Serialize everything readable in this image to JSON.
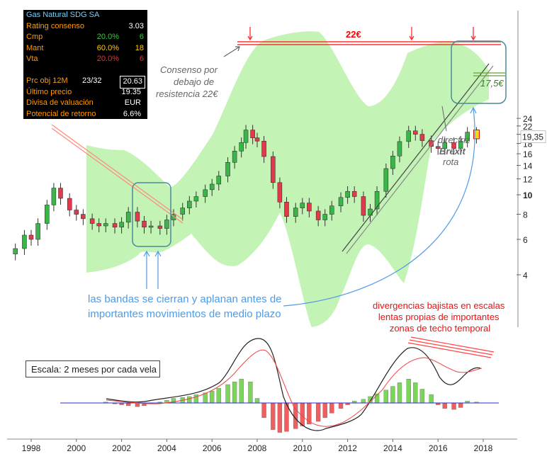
{
  "infobox": {
    "title": "Gas Natural SDG SA",
    "rows": [
      {
        "label": "Rating consenso",
        "v2": "",
        "v3": "3.03"
      },
      {
        "label": "Cmp",
        "v2": "20.0%",
        "v3": "6"
      },
      {
        "label": "Mant",
        "v2": "60.0%",
        "v3": "18"
      },
      {
        "label": "Vta",
        "v2": "20.0%",
        "v3": "6"
      }
    ],
    "prc_obj_label": "Prc obj 12M",
    "prc_obj_count": "23/32",
    "prc_obj_value": "20.63",
    "ultimo_label": "Último precio",
    "ultimo_value": "19.35",
    "divisa_label": "Divisa de valuación",
    "divisa_value": "EUR",
    "potencial_label": "Potencial de retorno",
    "potencial_value": "6.6%"
  },
  "annotations": {
    "resistance": "22€",
    "consenso": [
      "Consenso por",
      "debajo de",
      "resistencia 22€"
    ],
    "support": "17,5€",
    "directriz": [
      "directriz",
      "Brexit",
      "rota"
    ],
    "bands": [
      "las bandas se cierran y aplanan antes de",
      "importantes movimientos de medio plazo"
    ],
    "divergence": [
      "divergencias bajistas en escalas",
      "lentas propias de importantes",
      "zonas de techo temporal"
    ],
    "scale": "Escala: 2 meses por cada vela"
  },
  "chart_data": [
    {
      "type": "candlestick",
      "title": "Gas Natural SDG SA",
      "y_scale": "log",
      "y_ticks": [
        4,
        6,
        8,
        10,
        12,
        14,
        16,
        18,
        20,
        22,
        24
      ],
      "last_price_label": "19,35",
      "x_ticks": [
        "1998",
        "2000",
        "2002",
        "2004",
        "2006",
        "2008",
        "2010",
        "2012",
        "2014",
        "2016",
        "2018"
      ],
      "resistance_level": 22,
      "support_level": 17.5,
      "close_points": [
        {
          "x": 1997.3,
          "close": 5.4
        },
        {
          "x": 1997.7,
          "close": 6.3
        },
        {
          "x": 1998.0,
          "close": 6.0
        },
        {
          "x": 1998.3,
          "close": 7.2
        },
        {
          "x": 1998.7,
          "close": 8.9
        },
        {
          "x": 1999.0,
          "close": 10.8
        },
        {
          "x": 1999.3,
          "close": 9.6
        },
        {
          "x": 1999.7,
          "close": 8.4
        },
        {
          "x": 2000.0,
          "close": 8.0
        },
        {
          "x": 2000.3,
          "close": 7.6
        },
        {
          "x": 2000.7,
          "close": 7.2
        },
        {
          "x": 2001.0,
          "close": 7.0
        },
        {
          "x": 2001.3,
          "close": 7.2
        },
        {
          "x": 2001.7,
          "close": 6.9
        },
        {
          "x": 2002.0,
          "close": 7.3
        },
        {
          "x": 2002.3,
          "close": 8.2
        },
        {
          "x": 2002.7,
          "close": 7.4
        },
        {
          "x": 2003.0,
          "close": 6.9
        },
        {
          "x": 2003.3,
          "close": 7.0
        },
        {
          "x": 2003.7,
          "close": 6.8
        },
        {
          "x": 2004.0,
          "close": 7.5
        },
        {
          "x": 2004.3,
          "close": 8.0
        },
        {
          "x": 2004.7,
          "close": 8.6
        },
        {
          "x": 2005.0,
          "close": 9.3
        },
        {
          "x": 2005.3,
          "close": 9.8
        },
        {
          "x": 2005.7,
          "close": 10.6
        },
        {
          "x": 2006.0,
          "close": 11.3
        },
        {
          "x": 2006.3,
          "close": 12.4
        },
        {
          "x": 2006.7,
          "close": 14.5
        },
        {
          "x": 2007.0,
          "close": 16.5
        },
        {
          "x": 2007.3,
          "close": 18.2
        },
        {
          "x": 2007.5,
          "close": 21.0
        },
        {
          "x": 2007.8,
          "close": 19.2
        },
        {
          "x": 2008.0,
          "close": 18.5
        },
        {
          "x": 2008.3,
          "close": 15.5
        },
        {
          "x": 2008.7,
          "close": 11.5
        },
        {
          "x": 2009.0,
          "close": 9.2
        },
        {
          "x": 2009.3,
          "close": 7.8
        },
        {
          "x": 2009.7,
          "close": 8.6
        },
        {
          "x": 2010.0,
          "close": 9.1
        },
        {
          "x": 2010.3,
          "close": 8.3
        },
        {
          "x": 2010.7,
          "close": 7.5
        },
        {
          "x": 2011.0,
          "close": 8.0
        },
        {
          "x": 2011.3,
          "close": 8.8
        },
        {
          "x": 2011.7,
          "close": 9.7
        },
        {
          "x": 2012.0,
          "close": 10.4
        },
        {
          "x": 2012.3,
          "close": 9.8
        },
        {
          "x": 2012.7,
          "close": 7.9
        },
        {
          "x": 2013.0,
          "close": 8.5
        },
        {
          "x": 2013.3,
          "close": 10.4
        },
        {
          "x": 2013.7,
          "close": 13.5
        },
        {
          "x": 2014.0,
          "close": 15.6
        },
        {
          "x": 2014.3,
          "close": 18.4
        },
        {
          "x": 2014.7,
          "close": 20.8
        },
        {
          "x": 2015.0,
          "close": 20.0
        },
        {
          "x": 2015.3,
          "close": 18.6
        },
        {
          "x": 2015.7,
          "close": 17.4
        },
        {
          "x": 2016.0,
          "close": 17.0
        },
        {
          "x": 2016.3,
          "close": 18.2
        },
        {
          "x": 2016.7,
          "close": 17.0
        },
        {
          "x": 2017.0,
          "close": 18.5
        },
        {
          "x": 2017.3,
          "close": 20.5
        },
        {
          "x": 2017.7,
          "close": 19.35
        }
      ]
    },
    {
      "type": "histogram",
      "title": "MACD",
      "series": [
        {
          "name": "",
          "values": [
            {
              "x": 2001.3,
              "y": 0.1
            },
            {
              "x": 2001.7,
              "y": -0.1
            },
            {
              "x": 2002.0,
              "y": -0.2
            },
            {
              "x": 2002.3,
              "y": -0.3
            },
            {
              "x": 2002.7,
              "y": -0.4
            },
            {
              "x": 2003.0,
              "y": -0.3
            },
            {
              "x": 2003.3,
              "y": -0.1
            },
            {
              "x": 2003.7,
              "y": 0.1
            },
            {
              "x": 2004.0,
              "y": 0.3
            },
            {
              "x": 2004.3,
              "y": 0.5
            },
            {
              "x": 2004.7,
              "y": 0.6
            },
            {
              "x": 2005.0,
              "y": 0.7
            },
            {
              "x": 2005.3,
              "y": 0.9
            },
            {
              "x": 2005.7,
              "y": 1.1
            },
            {
              "x": 2006.0,
              "y": 1.3
            },
            {
              "x": 2006.3,
              "y": 1.6
            },
            {
              "x": 2006.7,
              "y": 2.0
            },
            {
              "x": 2007.0,
              "y": 2.3
            },
            {
              "x": 2007.3,
              "y": 2.6
            },
            {
              "x": 2007.7,
              "y": 2.3
            },
            {
              "x": 2008.0,
              "y": 0.5
            },
            {
              "x": 2008.3,
              "y": -1.6
            },
            {
              "x": 2008.7,
              "y": -2.9
            },
            {
              "x": 2009.0,
              "y": -3.2
            },
            {
              "x": 2009.3,
              "y": -3.1
            },
            {
              "x": 2009.7,
              "y": -2.8
            },
            {
              "x": 2010.0,
              "y": -2.5
            },
            {
              "x": 2010.3,
              "y": -2.3
            },
            {
              "x": 2010.7,
              "y": -2.0
            },
            {
              "x": 2011.0,
              "y": -1.6
            },
            {
              "x": 2011.3,
              "y": -1.1
            },
            {
              "x": 2011.7,
              "y": -0.6
            },
            {
              "x": 2012.0,
              "y": -0.2
            },
            {
              "x": 2012.3,
              "y": 0.2
            },
            {
              "x": 2012.7,
              "y": 0.4
            },
            {
              "x": 2013.0,
              "y": 0.7
            },
            {
              "x": 2013.3,
              "y": 1.0
            },
            {
              "x": 2013.7,
              "y": 1.4
            },
            {
              "x": 2014.0,
              "y": 1.8
            },
            {
              "x": 2014.3,
              "y": 2.2
            },
            {
              "x": 2014.7,
              "y": 2.6
            },
            {
              "x": 2015.0,
              "y": 2.2
            },
            {
              "x": 2015.3,
              "y": 1.5
            },
            {
              "x": 2015.7,
              "y": 0.9
            },
            {
              "x": 2016.0,
              "y": -0.2
            },
            {
              "x": 2016.3,
              "y": -0.6
            },
            {
              "x": 2016.7,
              "y": -0.7
            },
            {
              "x": 2017.0,
              "y": -0.5
            },
            {
              "x": 2017.3,
              "y": 0.2
            },
            {
              "x": 2017.7,
              "y": 0.1
            }
          ]
        }
      ]
    }
  ],
  "colors": {
    "band": "#bff2b0",
    "bull": "#3bb54a",
    "bear": "#e03a4c",
    "accent": "#ff0000",
    "annotation_blue": "#4f9be8",
    "annotation_gray": "#666666"
  }
}
